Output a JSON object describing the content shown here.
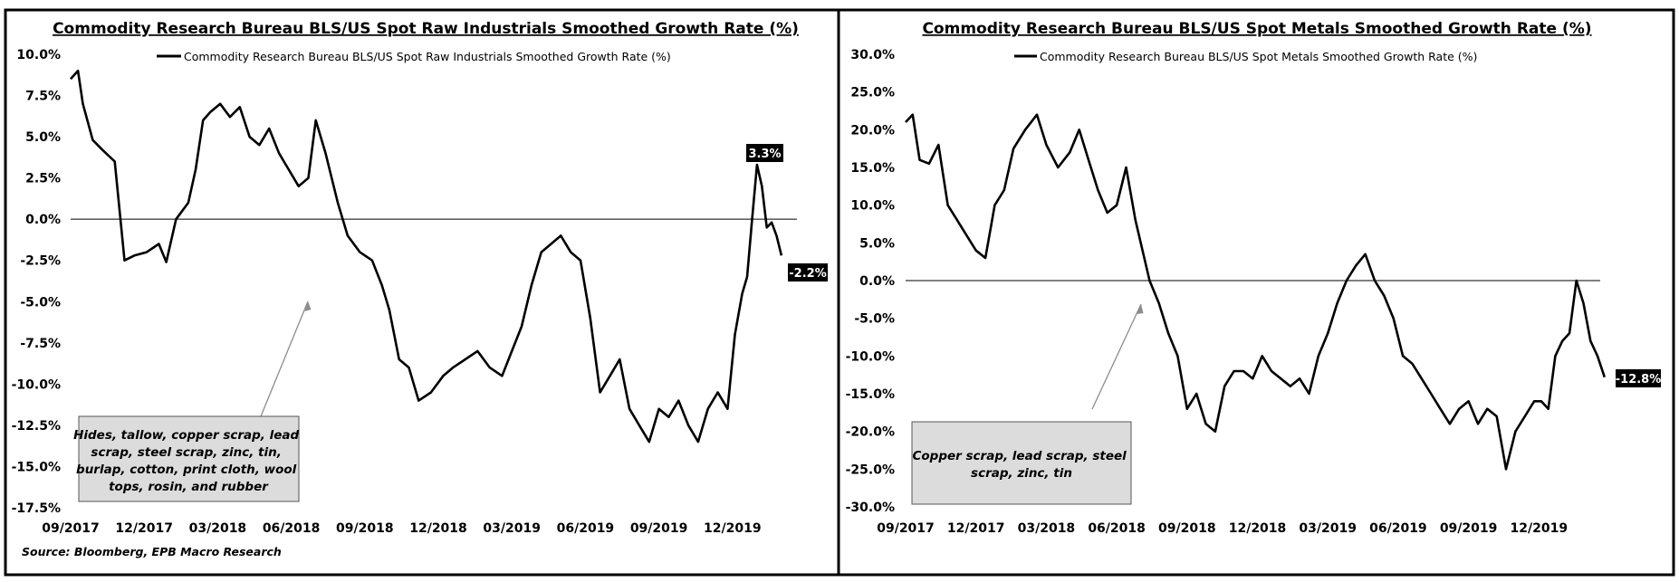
{
  "source_note": "Source: Bloomberg, EPB Macro Research",
  "chart_data": [
    {
      "type": "line",
      "title": "Commodity Research Bureau BLS/US Spot Raw Industrials Smoothed Growth Rate (%)",
      "series_name": "Commodity Research Bureau BLS/US Spot Raw Industrials Smoothed Growth Rate (%)",
      "ylim": [
        -17.5,
        10.0
      ],
      "y_ticks": [
        10.0,
        7.5,
        5.0,
        2.5,
        0.0,
        -2.5,
        -5.0,
        -7.5,
        -10.0,
        -12.5,
        -15.0,
        -17.5
      ],
      "y_tick_labels": [
        "10.0%",
        "7.5%",
        "5.0%",
        "2.5%",
        "0.0%",
        "-2.5%",
        "-5.0%",
        "-7.5%",
        "-10.0%",
        "-12.5%",
        "-15.0%",
        "-17.5%"
      ],
      "x_range_months": [
        0,
        30
      ],
      "x_tick_labels": [
        "09/2017",
        "12/2017",
        "03/2018",
        "06/2018",
        "09/2018",
        "12/2018",
        "03/2019",
        "06/2019",
        "09/2019",
        "12/2019"
      ],
      "x": [
        0,
        0.3,
        0.5,
        0.9,
        1.3,
        1.8,
        2.2,
        2.6,
        3.1,
        3.6,
        3.9,
        4.3,
        4.8,
        5.1,
        5.4,
        5.7,
        6.1,
        6.5,
        6.9,
        7.3,
        7.7,
        8.1,
        8.5,
        8.9,
        9.3,
        9.7,
        10.0,
        10.4,
        10.9,
        11.3,
        11.8,
        12.3,
        12.7,
        13.0,
        13.4,
        13.8,
        14.2,
        14.7,
        15.2,
        15.6,
        16.1,
        16.6,
        17.1,
        17.6,
        18.0,
        18.4,
        18.8,
        19.2,
        19.6,
        20.0,
        20.4,
        20.8,
        21.2,
        21.6,
        22.0,
        22.4,
        22.8,
        23.2,
        23.6,
        24.0,
        24.4,
        24.8,
        25.2,
        25.6,
        26.0,
        26.4,
        26.8,
        27.1,
        27.4,
        27.6,
        27.8,
        28.0,
        28.2,
        28.4,
        28.6,
        28.8,
        29.0
      ],
      "values": [
        8.5,
        9.0,
        7.0,
        4.8,
        4.2,
        3.5,
        -2.5,
        -2.2,
        -2.0,
        -1.5,
        -2.6,
        0.0,
        1.0,
        3.0,
        6.0,
        6.5,
        7.0,
        6.2,
        6.8,
        5.0,
        4.5,
        5.5,
        4.0,
        3.0,
        2.0,
        2.5,
        6.0,
        4.0,
        1.0,
        -1.0,
        -2.0,
        -2.5,
        -4.0,
        -5.5,
        -8.5,
        -9.0,
        -11.0,
        -10.5,
        -9.5,
        -9.0,
        -8.5,
        -8.0,
        -9.0,
        -9.5,
        -8.0,
        -6.5,
        -4.0,
        -2.0,
        -1.5,
        -1.0,
        -2.0,
        -2.5,
        -6.0,
        -10.5,
        -9.5,
        -8.5,
        -11.5,
        -12.5,
        -13.5,
        -11.5,
        -12.0,
        -11.0,
        -12.5,
        -13.5,
        -11.5,
        -10.5,
        -11.5,
        -7.0,
        -4.5,
        -3.5,
        0.0,
        3.3,
        2.0,
        -0.5,
        -0.2,
        -1.0,
        -2.2
      ],
      "zero_line": true,
      "end_label": "-2.2%",
      "peak_label": "3.3%",
      "callout_text": [
        "Hides, tallow, copper scrap, lead",
        "scrap, steel scrap, zinc, tin,",
        "burlap, cotton, print cloth, wool",
        "tops, rosin, and rubber"
      ]
    },
    {
      "type": "line",
      "title": "Commodity Research Bureau BLS/US Spot Metals Smoothed Growth Rate (%)",
      "series_name": "Commodity Research Bureau BLS/US Spot Metals Smoothed Growth Rate (%)",
      "ylim": [
        -30.0,
        30.0
      ],
      "y_ticks": [
        30.0,
        25.0,
        20.0,
        15.0,
        10.0,
        5.0,
        0.0,
        -5.0,
        -10.0,
        -15.0,
        -20.0,
        -25.0,
        -30.0
      ],
      "y_tick_labels": [
        "30.0%",
        "25.0%",
        "20.0%",
        "15.0%",
        "10.0%",
        "5.0%",
        "0.0%",
        "-5.0%",
        "-10.0%",
        "-15.0%",
        "-20.0%",
        "-25.0%",
        "-30.0%"
      ],
      "x_range_months": [
        0,
        30
      ],
      "x_tick_labels": [
        "09/2017",
        "12/2017",
        "03/2018",
        "06/2018",
        "09/2018",
        "12/2018",
        "03/2019",
        "06/2019",
        "09/2019",
        "12/2019"
      ],
      "x": [
        0,
        0.3,
        0.6,
        1.0,
        1.4,
        1.8,
        2.2,
        2.6,
        3.0,
        3.4,
        3.8,
        4.2,
        4.6,
        5.1,
        5.6,
        6.0,
        6.5,
        7.0,
        7.4,
        7.8,
        8.2,
        8.6,
        9.0,
        9.4,
        9.8,
        10.1,
        10.4,
        10.8,
        11.2,
        11.6,
        12.0,
        12.4,
        12.8,
        13.2,
        13.6,
        14.0,
        14.4,
        14.8,
        15.2,
        15.6,
        16.0,
        16.4,
        16.8,
        17.2,
        17.6,
        18.0,
        18.4,
        18.8,
        19.2,
        19.6,
        20.0,
        20.4,
        20.8,
        21.2,
        21.6,
        22.0,
        22.4,
        22.8,
        23.2,
        23.6,
        24.0,
        24.4,
        24.8,
        25.2,
        25.6,
        26.0,
        26.4,
        26.8,
        27.1,
        27.4,
        27.7,
        28.0,
        28.3,
        28.6,
        28.9,
        29.2,
        29.5,
        29.8
      ],
      "values": [
        21.0,
        22.0,
        16.0,
        15.5,
        18.0,
        10.0,
        8.0,
        6.0,
        4.0,
        3.0,
        10.0,
        12.0,
        17.5,
        20.0,
        22.0,
        18.0,
        15.0,
        17.0,
        20.0,
        16.0,
        12.0,
        9.0,
        10.0,
        15.0,
        8.0,
        4.0,
        0.0,
        -3.0,
        -7.0,
        -10.0,
        -17.0,
        -15.0,
        -19.0,
        -20.0,
        -14.0,
        -12.0,
        -12.0,
        -13.0,
        -10.0,
        -12.0,
        -13.0,
        -14.0,
        -13.0,
        -15.0,
        -10.0,
        -7.0,
        -3.0,
        0.0,
        2.0,
        3.5,
        0.0,
        -2.0,
        -5.0,
        -10.0,
        -11.0,
        -13.0,
        -15.0,
        -17.0,
        -19.0,
        -17.0,
        -16.0,
        -19.0,
        -17.0,
        -18.0,
        -25.0,
        -20.0,
        -18.0,
        -16.0,
        -16.0,
        -17.0,
        -10.0,
        -8.0,
        -7.0,
        0.0,
        -3.0,
        -8.0,
        -10.0,
        -12.8
      ],
      "zero_line": true,
      "end_label": "-12.8%",
      "callout_text": [
        "Copper scrap, lead scrap, steel",
        "scrap, zinc, tin"
      ]
    }
  ]
}
